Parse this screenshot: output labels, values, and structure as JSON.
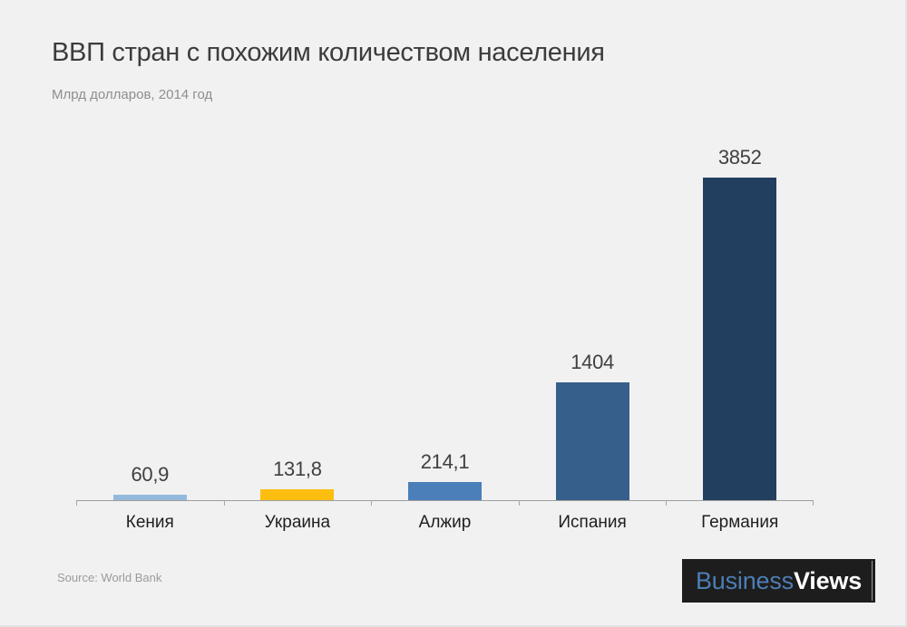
{
  "colors": {
    "background": "#f1f1f1",
    "axis": "#9d9d9d",
    "title_text": "#3c3c3c",
    "subtitle_text": "#8e8e8e",
    "value_text": "#404040",
    "category_text": "#1f1f1f"
  },
  "logo": {
    "business": "Business",
    "views": "Views",
    "background": "#1d1d1d",
    "business_color": "#4d7eb5",
    "views_color": "#ffffff"
  },
  "chart_data": {
    "type": "bar",
    "title": "ВВП стран с похожим количеством населения",
    "subtitle": "Млрд долларов, 2014 год",
    "source": "Source: World Bank",
    "categories": [
      "Кения",
      "Украина",
      "Алжир",
      "Испания",
      "Германия"
    ],
    "values": [
      60.9,
      131.8,
      214.1,
      1404,
      3852
    ],
    "value_labels": [
      "60,9",
      "131,8",
      "214,1",
      "1404",
      "3852"
    ],
    "bar_colors": [
      "#93bade",
      "#fdbe10",
      "#4a7fba",
      "#365f8c",
      "#233f5f"
    ],
    "xlabel": "",
    "ylabel": "Млрд долларов",
    "ylim": [
      0,
      3852
    ],
    "grid": false,
    "legend": "none",
    "year": "2014"
  }
}
